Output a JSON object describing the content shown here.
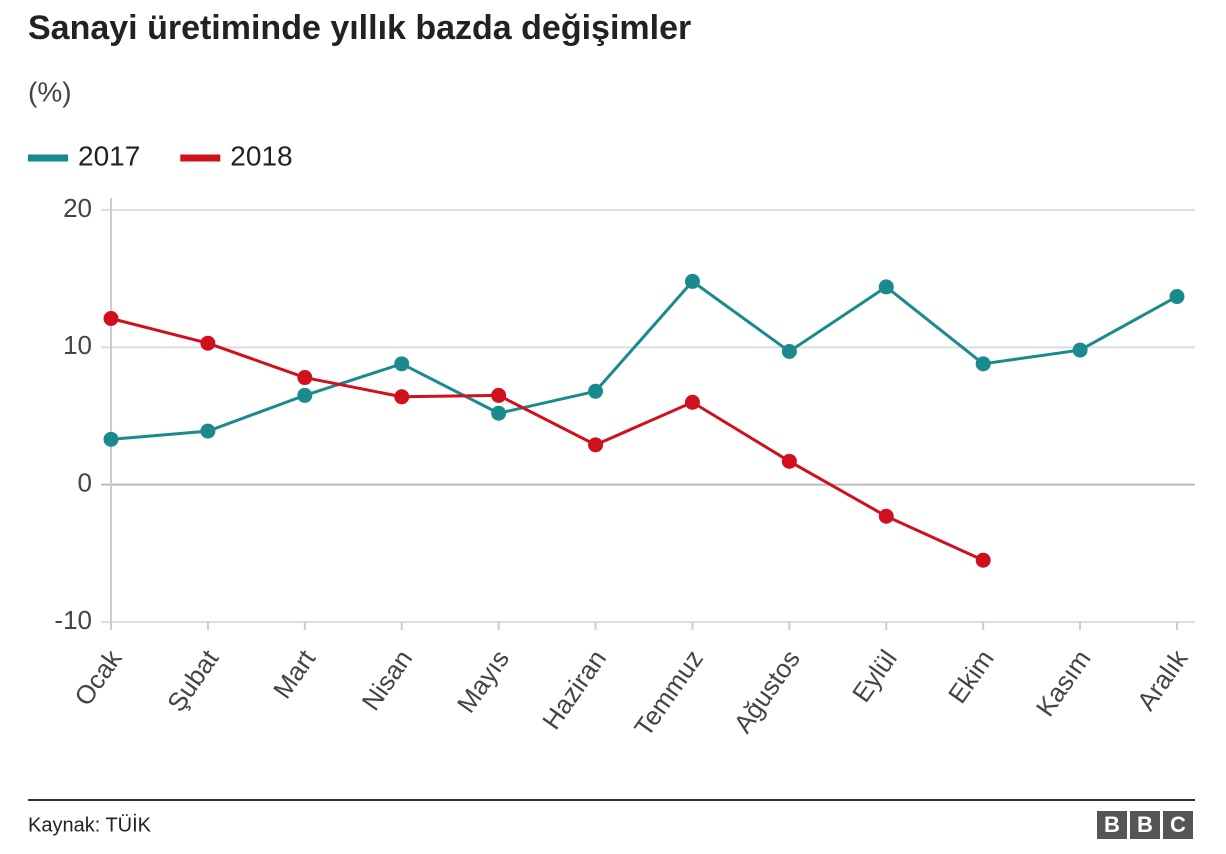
{
  "chart_data": {
    "type": "line",
    "title": "Sanayi üretiminde yıllık bazda değişimler",
    "subtitle": "(%)",
    "source": "Kaynak: TÜİK",
    "logo": [
      "B",
      "B",
      "C"
    ],
    "categories": [
      "Ocak",
      "Şubat",
      "Mart",
      "Nisan",
      "Mayıs",
      "Haziran",
      "Temmuz",
      "Ağustos",
      "Eylül",
      "Ekim",
      "Kasım",
      "Aralık"
    ],
    "series": [
      {
        "name": "2017",
        "color": "#1a8a8c",
        "values": [
          3.3,
          3.9,
          6.5,
          8.8,
          5.2,
          6.8,
          14.8,
          9.7,
          14.4,
          8.8,
          9.8,
          13.7
        ]
      },
      {
        "name": "2018",
        "color": "#d0101c",
        "values": [
          12.1,
          10.3,
          7.8,
          6.4,
          6.5,
          2.9,
          6.0,
          1.7,
          -2.3,
          -5.5,
          null,
          null
        ]
      }
    ],
    "ylim": [
      -10,
      20
    ],
    "yticks": [
      -10,
      0,
      10,
      20
    ],
    "grid": true,
    "legend": "top-left"
  }
}
